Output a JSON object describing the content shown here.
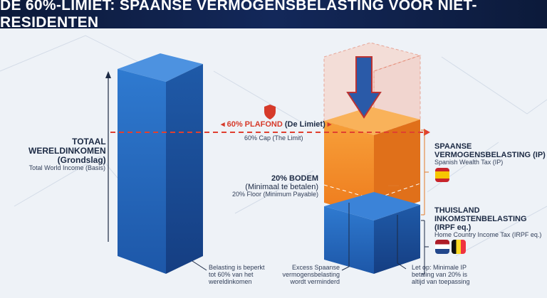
{
  "header": {
    "title": "DE 60%-LIMIET: SPAANSE VERMOGENSBELASTING VOOR NIET-RESIDENTEN"
  },
  "left_label": {
    "title_line1": "TOTAAL",
    "title_line2": "WERELDINKOMEN",
    "title_line3": "(Grondslag)",
    "subtitle": "Total World Income (Basis)"
  },
  "cap": {
    "title": "60% PLAFOND",
    "title_paren": "(De Limiet)",
    "subtitle": "60% Cap (The Limit)",
    "icon": "shield-icon"
  },
  "floor": {
    "title": "20% BODEM",
    "line2": "(Minimaal te betalen)",
    "subtitle": "20% Floor (Minimum Payable)"
  },
  "spanish_tax": {
    "title_line1": "SPAANSE",
    "title_line2": "VERMOGENSBELASTING (IP)",
    "subtitle": "Spanish Wealth Tax (IP)",
    "flag": "spain"
  },
  "home_tax": {
    "title_line1": "THUISLAND",
    "title_line2": "INKOMSTENBELASTING",
    "title_line3": "(IRPF eq.)",
    "subtitle": "Home Country Income Tax (IRPF eq.)",
    "flags": [
      "netherlands",
      "belgium"
    ]
  },
  "notes": [
    {
      "lines": [
        "Belasting is beperkt",
        "tot 60% van het",
        "wereldinkomen"
      ]
    },
    {
      "lines": [
        "Excess Spaanse",
        "vermogensbelasting",
        "wordt verminderd"
      ]
    },
    {
      "lines": [
        "Let op: Minimale IP",
        "betaling van 20% is",
        "altijd van toepassing"
      ]
    }
  ],
  "colors": {
    "header": "#0c1a3a",
    "blue": "#2f6fc2",
    "orange": "#f28a2a",
    "cap_red": "#d63a2a"
  }
}
